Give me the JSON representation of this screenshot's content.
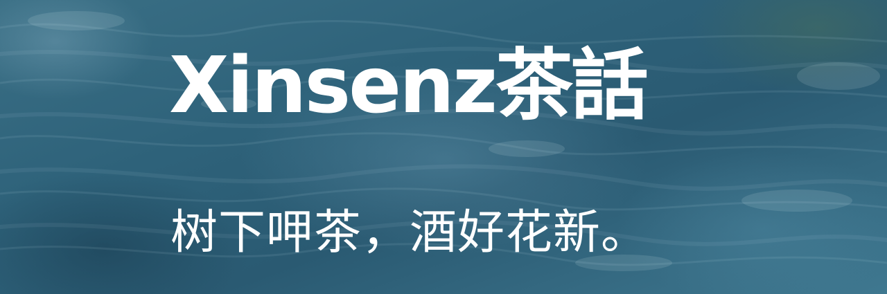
{
  "banner": {
    "title": "Xinsenz茶話",
    "tagline": "树下呷茶，酒好花新。",
    "text_color": "#ffffff",
    "background_color": "#2d5a6e"
  }
}
